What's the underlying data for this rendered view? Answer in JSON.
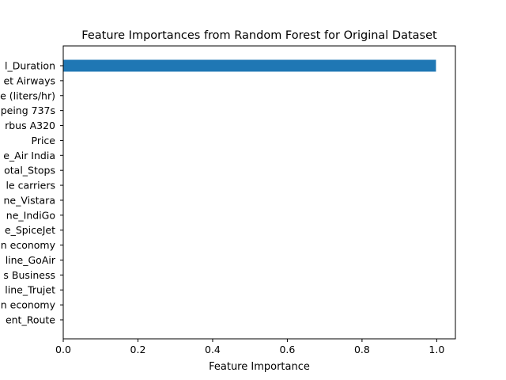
{
  "chart_data": {
    "type": "bar",
    "orientation": "horizontal",
    "title": "Feature Importances from Random Forest for Original Dataset",
    "xlabel": "Feature Importance",
    "ylabel": "",
    "xlim": [
      0,
      1.05
    ],
    "x_ticks": [
      0.0,
      0.2,
      0.4,
      0.6,
      0.8,
      1.0
    ],
    "x_tick_labels": [
      "0.0",
      "0.2",
      "0.4",
      "0.6",
      "0.8",
      "1.0"
    ],
    "grid": false,
    "bar_color": "#1f77b4",
    "categories": [
      "l_Duration",
      "et Airways",
      "e (liters/hr)",
      "peing 737s",
      "rbus A320",
      "Price",
      "e_Air India",
      "otal_Stops",
      "le carriers",
      "ne_Vistara",
      "ne_IndiGo",
      "e_SpiceJet",
      "n economy",
      "line_GoAir",
      "s Business",
      "line_Trujet",
      "n economy",
      "ent_Route"
    ],
    "values": [
      0.998,
      0.0005,
      0.0003,
      0.0002,
      0.0002,
      0.0001,
      0.0001,
      0.0001,
      0.0001,
      0.0001,
      0.0001,
      0.0,
      0.0,
      0.0,
      0.0,
      0.0,
      0.0,
      0.0
    ]
  }
}
